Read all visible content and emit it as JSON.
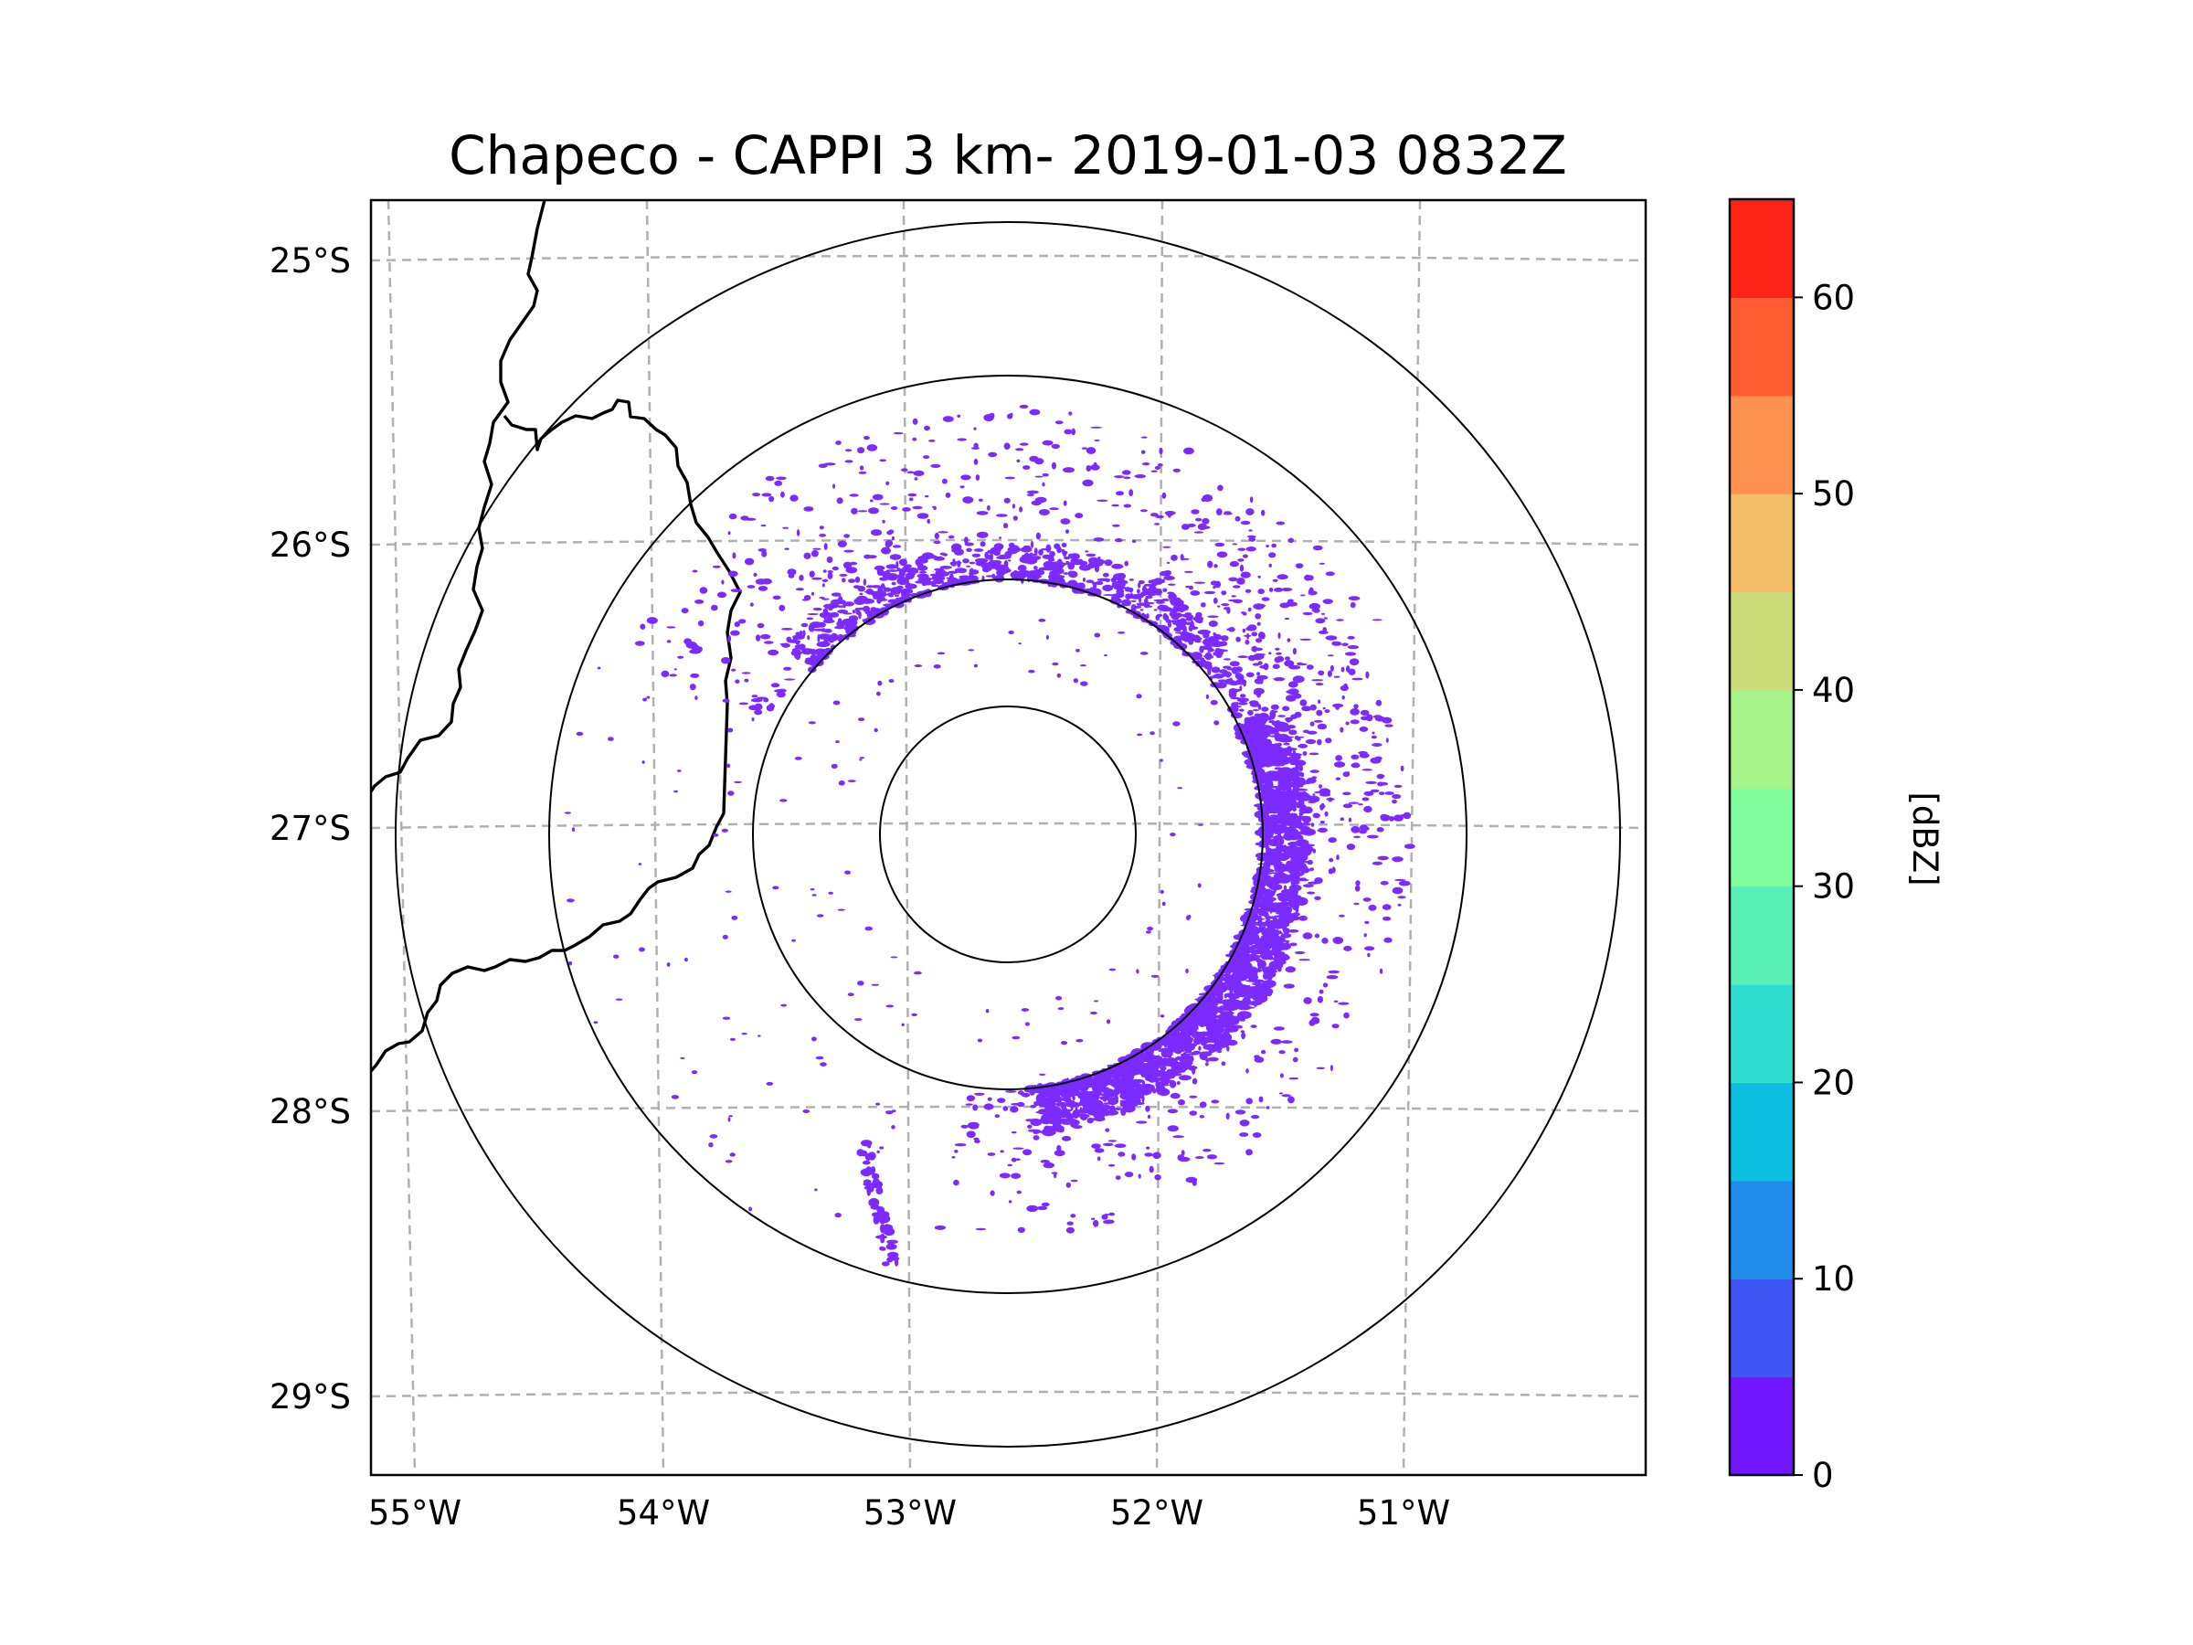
{
  "title": "Chapeco - CAPPI 3 km- 2019-01-03 0832Z",
  "map": {
    "lat_ticks": [
      "25°S",
      "26°S",
      "27°S",
      "28°S",
      "29°S"
    ],
    "lon_ticks": [
      "55°W",
      "54°W",
      "53°W",
      "52°W",
      "51°W"
    ],
    "range_rings": [
      "ring-1",
      "ring-2",
      "ring-3",
      "ring-4"
    ],
    "echo_color": "#7b2bff"
  },
  "colorbar": {
    "label": "[dBZ]",
    "ticks": [
      "0",
      "10",
      "20",
      "30",
      "40",
      "50",
      "60"
    ],
    "levels": [
      0,
      5,
      10,
      15,
      20,
      25,
      30,
      35,
      40,
      45,
      50,
      55,
      60,
      65
    ],
    "colors": [
      "#7216ff",
      "#3f56f5",
      "#208be9",
      "#0dbfe0",
      "#30dfd0",
      "#58f0b7",
      "#80fd9d",
      "#a6f48a",
      "#cddc7a",
      "#f4bd68",
      "#ff9250",
      "#ff5c33",
      "#ff2318"
    ]
  }
}
